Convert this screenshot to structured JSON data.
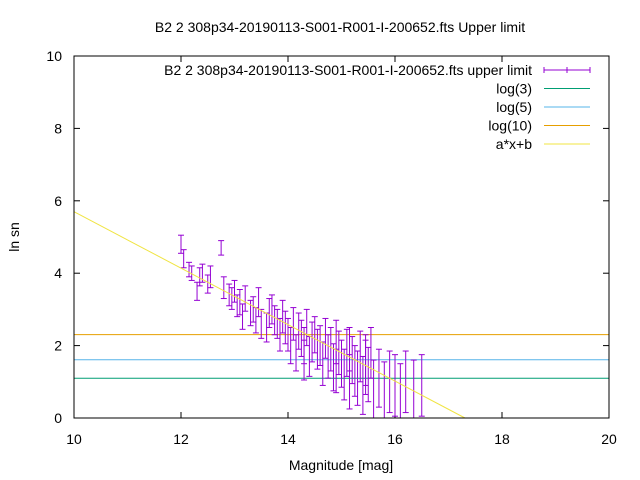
{
  "chart_data": {
    "type": "scatter",
    "title": "B2 2 308p34-20190113-S001-R001-I-200652.fts Upper limit",
    "xlabel": "Magnitude [mag]",
    "ylabel": "ln sn",
    "xlim": [
      10,
      20
    ],
    "ylim": [
      0,
      10
    ],
    "xticks": [
      10,
      12,
      14,
      16,
      18,
      20
    ],
    "yticks": [
      0,
      2,
      4,
      6,
      8,
      10
    ],
    "grid": false,
    "legend_position": "top-right",
    "series": [
      {
        "name": "B2 2 308p34-20190113-S001-R001-I-200652.fts upper limit",
        "kind": "errorbars",
        "color": "#9400d3",
        "points": [
          [
            12.0,
            4.8,
            0.25
          ],
          [
            12.05,
            4.4,
            0.25
          ],
          [
            12.15,
            4.1,
            0.2
          ],
          [
            12.2,
            4.0,
            0.2
          ],
          [
            12.3,
            3.5,
            0.25
          ],
          [
            12.35,
            3.9,
            0.25
          ],
          [
            12.4,
            4.0,
            0.25
          ],
          [
            12.5,
            3.7,
            0.25
          ],
          [
            12.55,
            3.9,
            0.3
          ],
          [
            12.75,
            4.7,
            0.2
          ],
          [
            12.8,
            3.6,
            0.3
          ],
          [
            12.9,
            3.4,
            0.3
          ],
          [
            12.95,
            3.3,
            0.3
          ],
          [
            13.0,
            3.5,
            0.3
          ],
          [
            13.05,
            3.1,
            0.3
          ],
          [
            13.1,
            3.2,
            0.35
          ],
          [
            13.15,
            2.8,
            0.35
          ],
          [
            13.2,
            3.3,
            0.35
          ],
          [
            13.3,
            2.9,
            0.35
          ],
          [
            13.35,
            3.0,
            0.35
          ],
          [
            13.4,
            2.7,
            0.35
          ],
          [
            13.45,
            3.2,
            0.4
          ],
          [
            13.5,
            2.6,
            0.4
          ],
          [
            13.6,
            2.5,
            0.4
          ],
          [
            13.65,
            2.9,
            0.4
          ],
          [
            13.7,
            3.0,
            0.4
          ],
          [
            13.75,
            2.7,
            0.4
          ],
          [
            13.8,
            2.6,
            0.4
          ],
          [
            13.85,
            2.3,
            0.45
          ],
          [
            13.9,
            2.8,
            0.45
          ],
          [
            13.95,
            2.5,
            0.45
          ],
          [
            14.0,
            2.3,
            0.45
          ],
          [
            14.05,
            2.0,
            0.5
          ],
          [
            14.1,
            2.6,
            0.45
          ],
          [
            14.15,
            1.8,
            0.5
          ],
          [
            14.2,
            2.4,
            0.5
          ],
          [
            14.25,
            2.2,
            0.5
          ],
          [
            14.3,
            2.0,
            0.5
          ],
          [
            14.35,
            2.5,
            0.5
          ],
          [
            14.4,
            1.7,
            0.55
          ],
          [
            14.45,
            2.1,
            0.55
          ],
          [
            14.5,
            2.3,
            0.5
          ],
          [
            14.55,
            1.9,
            0.55
          ],
          [
            14.6,
            2.0,
            0.55
          ],
          [
            14.65,
            1.5,
            0.6
          ],
          [
            14.7,
            2.2,
            0.55
          ],
          [
            14.75,
            1.7,
            0.6
          ],
          [
            14.8,
            1.9,
            0.6
          ],
          [
            14.85,
            1.4,
            0.65
          ],
          [
            14.9,
            2.1,
            0.6
          ],
          [
            14.95,
            1.8,
            0.6
          ],
          [
            15.0,
            1.5,
            0.65
          ],
          [
            15.05,
            1.2,
            0.7
          ],
          [
            15.1,
            1.8,
            0.65
          ],
          [
            15.15,
            1.0,
            0.75
          ],
          [
            15.2,
            1.6,
            0.65
          ],
          [
            15.25,
            1.3,
            0.7
          ],
          [
            15.3,
            1.1,
            0.75
          ],
          [
            15.35,
            1.7,
            0.7
          ],
          [
            15.4,
            0.9,
            0.8
          ],
          [
            15.45,
            1.4,
            0.75
          ],
          [
            15.5,
            1.2,
            0.75
          ],
          [
            15.55,
            1.8,
            0.7
          ],
          [
            15.6,
            0.8,
            0.8
          ],
          [
            15.7,
            1.1,
            0.8
          ],
          [
            15.8,
            0.7,
            0.85
          ],
          [
            15.9,
            1.0,
            0.85
          ],
          [
            16.0,
            0.9,
            0.85
          ],
          [
            16.1,
            0.6,
            0.9
          ],
          [
            16.2,
            1.0,
            0.85
          ],
          [
            16.35,
            0.7,
            0.9
          ],
          [
            16.5,
            0.9,
            0.85
          ],
          [
            14.3,
            1.6,
            0.55
          ],
          [
            14.9,
            1.3,
            0.6
          ],
          [
            15.15,
            1.9,
            0.6
          ],
          [
            15.45,
            1.6,
            0.7
          ]
        ]
      },
      {
        "name": "log(3)",
        "kind": "hline",
        "color": "#009e73",
        "y": 1.0986
      },
      {
        "name": "log(5)",
        "kind": "hline",
        "color": "#56b4e9",
        "y": 1.6094
      },
      {
        "name": "log(10)",
        "kind": "hline",
        "color": "#e69f00",
        "y": 2.3026
      },
      {
        "name": "a*x+b",
        "kind": "fitline",
        "color": "#f0e442",
        "a": -0.78,
        "b": 13.5
      }
    ]
  }
}
